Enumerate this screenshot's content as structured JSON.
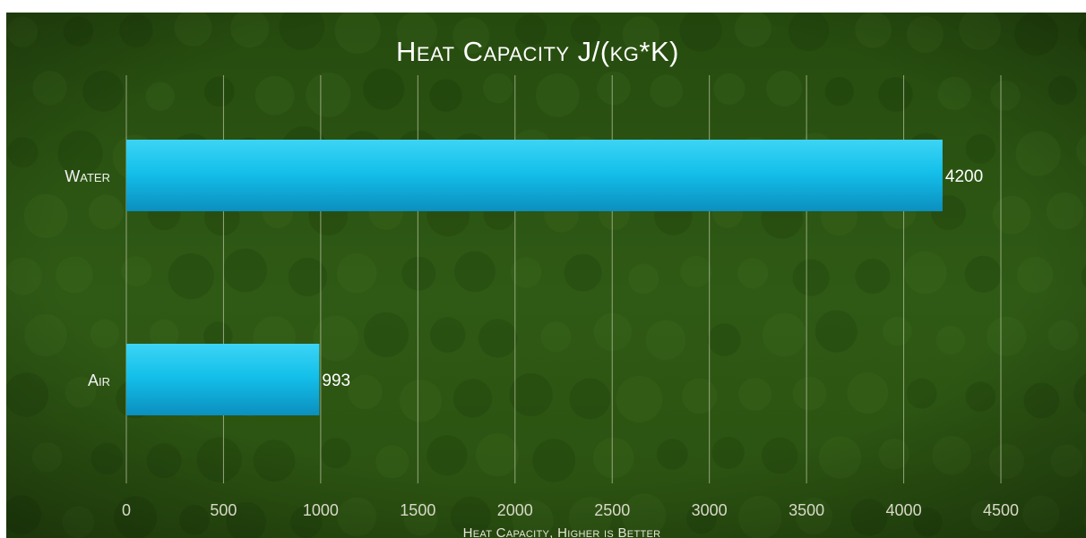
{
  "colors": {
    "background_top": "#254a0e",
    "background_mid": "#2f5a15",
    "background_bottom": "#2a5010",
    "bar": "#14c0ea",
    "bar_highlight": "#3dd4f5",
    "bar_shadow": "#0b8fbf",
    "gridline": "#b9c2a0",
    "text": "#ffffff"
  },
  "chart_data": {
    "type": "bar",
    "orientation": "horizontal",
    "title": "Heat Capacity J/(kg*K)",
    "xlabel": "Heat Capacity, Higher is Better",
    "ylabel": "",
    "categories": [
      "Water",
      "Air"
    ],
    "values": [
      4200,
      993
    ],
    "value_labels": [
      "4200",
      "993"
    ],
    "xlim": [
      0,
      4500
    ],
    "xticks": [
      0,
      500,
      1000,
      1500,
      2000,
      2500,
      3000,
      3500,
      4000,
      4500
    ],
    "xtick_labels": [
      "0",
      "500",
      "1000",
      "1500",
      "2000",
      "2500",
      "3000",
      "3500",
      "4000",
      "4500"
    ],
    "grid": "vertical",
    "legend": "none"
  }
}
